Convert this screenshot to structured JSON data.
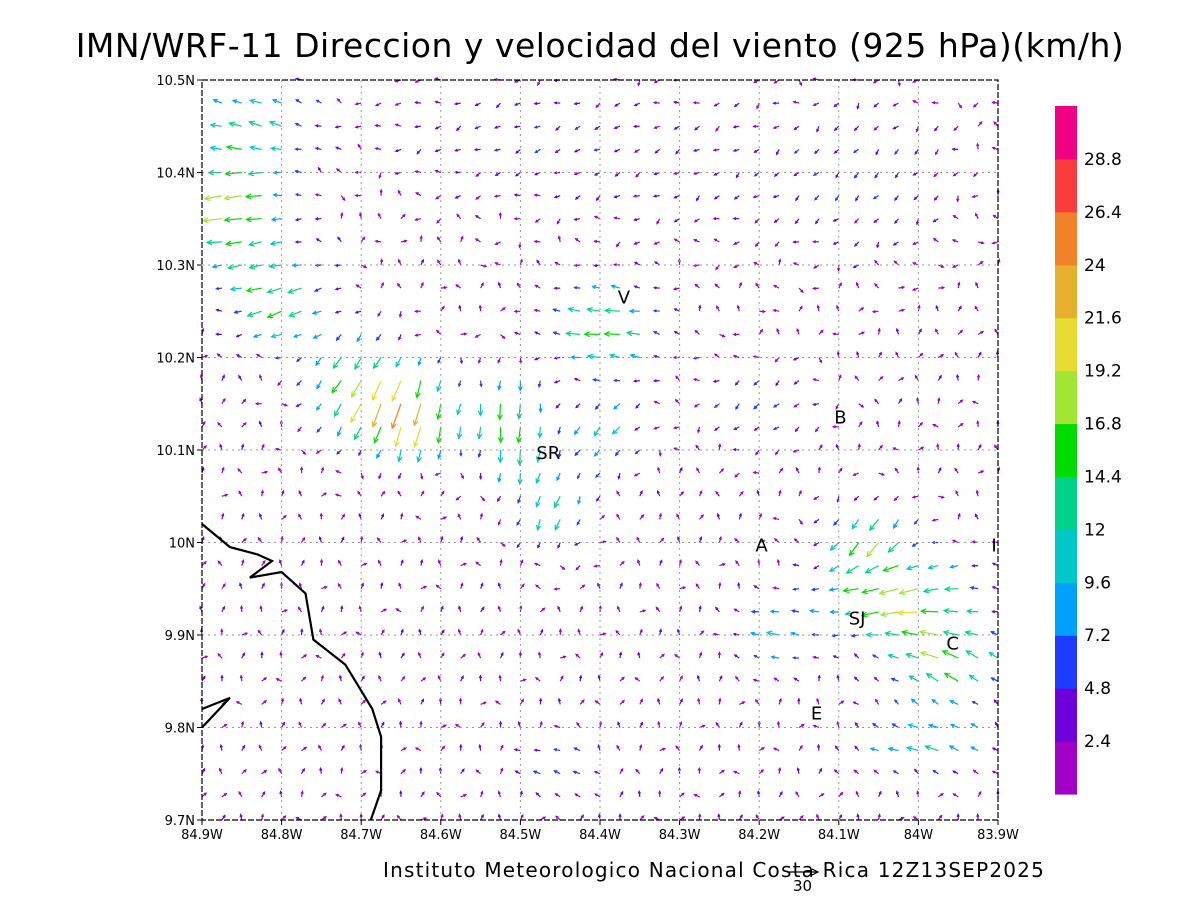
{
  "title": "IMN/WRF-11 Direccion y velocidad del viento (925 hPa)(km/h)",
  "credit": "Instituto Meteorologico Nacional Costa Rica 12Z13SEP2025",
  "reference_vector": {
    "label": "30",
    "value": 30
  },
  "map": {
    "lon_range": [
      -84.9,
      -83.9
    ],
    "lat_range": [
      9.7,
      10.5
    ],
    "lon_ticks": [
      {
        "value": -84.9,
        "label": "84.9W"
      },
      {
        "value": -84.8,
        "label": "84.8W"
      },
      {
        "value": -84.7,
        "label": "84.7W"
      },
      {
        "value": -84.6,
        "label": "84.6W"
      },
      {
        "value": -84.5,
        "label": "84.5W"
      },
      {
        "value": -84.4,
        "label": "84.4W"
      },
      {
        "value": -84.3,
        "label": "84.3W"
      },
      {
        "value": -84.2,
        "label": "84.2W"
      },
      {
        "value": -84.1,
        "label": "84.1W"
      },
      {
        "value": -84.0,
        "label": "84W"
      },
      {
        "value": -83.9,
        "label": "83.9W"
      }
    ],
    "lat_ticks": [
      {
        "value": 9.7,
        "label": "9.7N"
      },
      {
        "value": 9.8,
        "label": "9.8N"
      },
      {
        "value": 9.9,
        "label": "9.9N"
      },
      {
        "value": 10.0,
        "label": "10N"
      },
      {
        "value": 10.1,
        "label": "10.1N"
      },
      {
        "value": 10.2,
        "label": "10.2N"
      },
      {
        "value": 10.3,
        "label": "10.3N"
      },
      {
        "value": 10.4,
        "label": "10.4N"
      },
      {
        "value": 10.5,
        "label": "10.5N"
      }
    ],
    "grid": true,
    "places": [
      {
        "label": "V",
        "lon": -84.37,
        "lat": 10.265
      },
      {
        "label": "B",
        "lon": -84.098,
        "lat": 10.135
      },
      {
        "label": "SR",
        "lon": -84.465,
        "lat": 10.097
      },
      {
        "label": "A",
        "lon": -84.197,
        "lat": 9.997
      },
      {
        "label": "I",
        "lon": -83.905,
        "lat": 9.997
      },
      {
        "label": "SJ",
        "lon": -84.077,
        "lat": 9.918
      },
      {
        "label": "C",
        "lon": -83.957,
        "lat": 9.891
      },
      {
        "label": "E",
        "lon": -84.128,
        "lat": 9.815
      }
    ],
    "coastline": [
      [
        -84.9,
        10.02
      ],
      [
        -84.865,
        9.995
      ],
      [
        -84.83,
        9.987
      ],
      [
        -84.812,
        9.98
      ],
      [
        -84.84,
        9.962
      ],
      [
        -84.8,
        9.968
      ],
      [
        -84.77,
        9.945
      ],
      [
        -84.76,
        9.895
      ],
      [
        -84.72,
        9.868
      ],
      [
        -84.686,
        9.82
      ],
      [
        -84.675,
        9.79
      ],
      [
        -84.675,
        9.732
      ],
      [
        -84.688,
        9.7
      ]
    ],
    "peninsula_tip": [
      [
        -84.9,
        9.82
      ],
      [
        -84.865,
        9.832
      ],
      [
        -84.9,
        9.8
      ]
    ],
    "wind_field": {
      "grid_points": "regular 0.025 deg lattice covering the map",
      "regimes": [
        {
          "name": "northwest-coast easterlies",
          "lon": -84.85,
          "lat": 10.36,
          "direction": "toward west",
          "speed_kmh": 20
        },
        {
          "name": "north-central northeasterlies",
          "lon": -84.5,
          "lat": 10.45,
          "direction": "toward southwest",
          "speed_kmh": 4
        },
        {
          "name": "Poas/Barva downslope jet",
          "lon": -84.68,
          "lat": 10.14,
          "direction": "toward south-southwest",
          "speed_kmh": 24
        },
        {
          "name": "San Ramon jet",
          "lon": -84.51,
          "lat": 10.14,
          "direction": "toward south",
          "speed_kmh": 20
        },
        {
          "name": "Vara Blanca gap flow",
          "lon": -84.39,
          "lat": 10.23,
          "direction": "toward west",
          "speed_kmh": 15
        },
        {
          "name": "Central Valley easterlies",
          "lon": -84.02,
          "lat": 9.92,
          "direction": "toward west-southwest",
          "speed_kmh": 20
        },
        {
          "name": "Cartago corridor",
          "lon": -83.99,
          "lat": 9.8,
          "direction": "toward west",
          "speed_kmh": 14
        },
        {
          "name": "southwest lowlands",
          "lon": -84.75,
          "lat": 9.85,
          "direction": "toward north",
          "speed_kmh": 2
        }
      ]
    }
  },
  "colorbar": {
    "unit": "km/h",
    "bins": [
      {
        "color": "#a000c8",
        "upper": 2.4
      },
      {
        "color": "#6e00dc",
        "upper": 4.8
      },
      {
        "color": "#1e3cff",
        "upper": 7.2
      },
      {
        "color": "#00a0ff",
        "upper": 9.6
      },
      {
        "color": "#00c8c8",
        "upper": 12
      },
      {
        "color": "#00d28c",
        "upper": 14.4
      },
      {
        "color": "#00dc00",
        "upper": 16.8
      },
      {
        "color": "#a0e632",
        "upper": 19.2
      },
      {
        "color": "#e6dc32",
        "upper": 21.6
      },
      {
        "color": "#e6af2d",
        "upper": 24
      },
      {
        "color": "#f08228",
        "upper": 26.4
      },
      {
        "color": "#fa3c3c",
        "upper": 28.8
      },
      {
        "color": "#f00082",
        "upper": null
      }
    ],
    "labels": [
      "2.4",
      "4.8",
      "7.2",
      "9.6",
      "12",
      "14.4",
      "16.8",
      "19.2",
      "21.6",
      "24",
      "26.4",
      "28.8"
    ]
  }
}
